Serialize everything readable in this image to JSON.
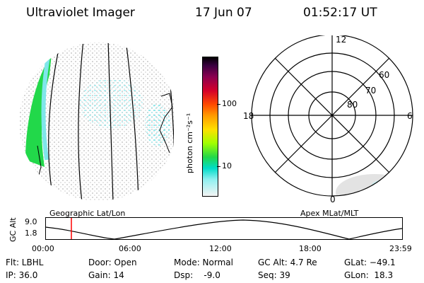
{
  "header": {
    "title": "Ultraviolet Imager",
    "date": "17 Jun 07",
    "time": "01:52:17 UT"
  },
  "colorbar": {
    "unit_label": "photon cm⁻²s⁻¹",
    "ticks": [
      "100",
      "10"
    ]
  },
  "polar_plot": {
    "mlt_labels": [
      "12",
      "18",
      "6",
      "0"
    ],
    "lat_labels": [
      "60",
      "70",
      "80"
    ]
  },
  "timeline": {
    "left_caption": "Geographic Lat/Lon",
    "right_caption": "Apex MLat/MLT",
    "axis_name": "GC Alt",
    "y_ticks": [
      "9.0",
      "1.8"
    ],
    "x_ticks": [
      "00:00",
      "06:00",
      "12:00",
      "18:00",
      "23:59"
    ],
    "current_time_marker": "01:52:17"
  },
  "info": {
    "flt": "Flt: LBHL",
    "ip": "IP: 36.0",
    "door": "Door: Open",
    "gain": "Gain: 14",
    "mode": "Mode: Normal",
    "dsp": "Dsp:    -9.0",
    "gc_alt": "GC Alt: 4.7 Re",
    "seq": "Seq: 39",
    "glat": "GLat: −49.1",
    "glon": "GLon:  18.3"
  },
  "colors": {
    "cyan_emission": "#7fe6ea",
    "green_emission": "#22d84a",
    "marker": "#ff0000"
  }
}
